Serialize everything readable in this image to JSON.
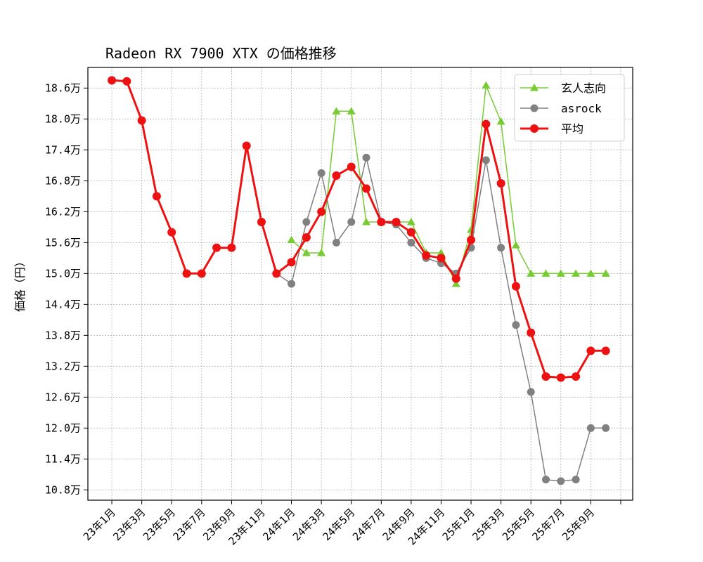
{
  "chart_data": {
    "type": "line",
    "title": "Radeon RX 7900 XTX の価格推移",
    "xlabel": "",
    "ylabel": "価格（円）",
    "x_unit": "month index (0 = 23年1月)",
    "ylim": [
      10.6,
      19.0
    ],
    "yticks": [
      10.8,
      11.4,
      12.0,
      12.6,
      13.2,
      13.8,
      14.4,
      15.0,
      15.6,
      16.2,
      16.8,
      17.4,
      18.0,
      18.6
    ],
    "ytick_labels": [
      "10.8万",
      "11.4万",
      "12.0万",
      "12.6万",
      "13.2万",
      "13.8万",
      "14.4万",
      "15.0万",
      "15.6万",
      "16.2万",
      "16.8万",
      "17.4万",
      "18.0万",
      "18.6万"
    ],
    "xlim": [
      -1.6,
      34.8
    ],
    "xticks": [
      0,
      2,
      4,
      6,
      8,
      10,
      12,
      14,
      16,
      18,
      20,
      22,
      24,
      26,
      28,
      30,
      32,
      34
    ],
    "xtick_labels": [
      "23年1月",
      "23年3月",
      "23年5月",
      "23年7月",
      "23年9月",
      "23年11月",
      "24年1月",
      "24年3月",
      "24年5月",
      "24年7月",
      "24年9月",
      "24年11月",
      "25年1月",
      "25年3月",
      "25年5月",
      "25年7月",
      "25年9月",
      ""
    ],
    "grid": true,
    "legend_position": "top-right",
    "series": [
      {
        "name": "玄人志向",
        "color": "#77cc33",
        "marker": "triangle",
        "x": [
          12,
          13,
          14,
          15,
          16,
          17,
          18,
          19,
          20,
          21,
          22,
          23,
          24,
          25,
          26,
          27,
          28,
          29,
          30,
          31,
          32,
          33
        ],
        "values": [
          15.65,
          15.4,
          15.4,
          18.15,
          18.15,
          16.0,
          16.0,
          16.0,
          16.0,
          15.4,
          15.4,
          14.8,
          15.85,
          18.65,
          17.95,
          15.55,
          15.0,
          15.0,
          15.0,
          15.0,
          15.0,
          15.0
        ]
      },
      {
        "name": "asrock",
        "color": "#808080",
        "marker": "circle",
        "x": [
          11,
          12,
          13,
          14,
          15,
          16,
          17,
          18,
          19,
          20,
          21,
          22,
          23,
          24,
          25,
          26,
          27,
          28,
          29,
          30,
          31,
          32,
          33
        ],
        "values": [
          15.0,
          14.8,
          16.0,
          16.95,
          15.6,
          16.0,
          17.25,
          16.0,
          15.95,
          15.6,
          15.3,
          15.2,
          15.0,
          15.5,
          17.2,
          15.5,
          14.0,
          12.7,
          11.0,
          10.97,
          11.0,
          12.0,
          12.0
        ]
      },
      {
        "name": "平均",
        "color": "#ee1111",
        "marker": "circle",
        "x": [
          0,
          1,
          2,
          3,
          4,
          5,
          6,
          7,
          8,
          9,
          10,
          11,
          12,
          13,
          14,
          15,
          16,
          17,
          18,
          19,
          20,
          21,
          22,
          23,
          24,
          25,
          26,
          27,
          28,
          29,
          30,
          31,
          32,
          33
        ],
        "values": [
          18.75,
          18.73,
          17.97,
          16.5,
          15.8,
          15.0,
          15.0,
          15.5,
          15.5,
          17.48,
          16.0,
          15.0,
          15.22,
          15.7,
          16.2,
          16.9,
          17.07,
          16.65,
          16.0,
          16.0,
          15.8,
          15.35,
          15.3,
          14.9,
          15.65,
          17.9,
          16.75,
          14.75,
          13.85,
          13.0,
          12.98,
          13.0,
          13.5,
          13.5
        ]
      }
    ]
  }
}
